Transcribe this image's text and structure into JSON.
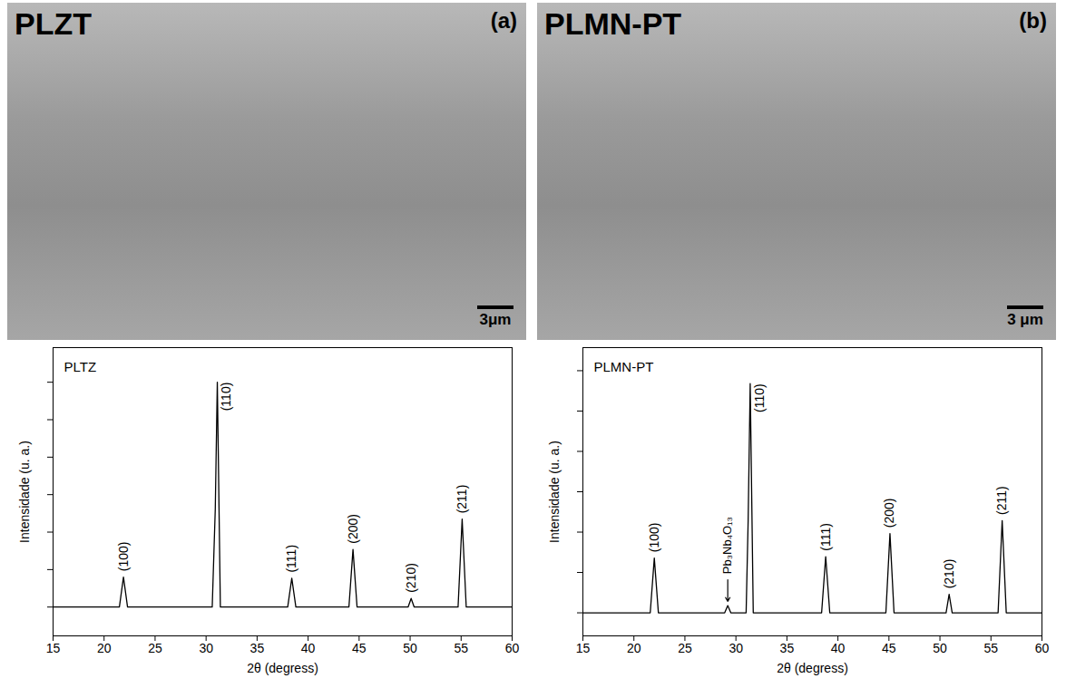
{
  "images": [
    {
      "title": "PLZT",
      "label": "(a)",
      "scale_bar": "3μm"
    },
    {
      "title": "PLMN-PT",
      "label": "(b)",
      "scale_bar": "3 μm"
    }
  ],
  "chart_data": [
    {
      "type": "line",
      "title": "PLTZ",
      "color": "#000000",
      "xlabel": "2θ (degress)",
      "ylabel": "Intensidade (u. a.)",
      "x": [
        15,
        21.5,
        21.9,
        22.3,
        30.6,
        30.9,
        31.1,
        31.4,
        38.0,
        38.4,
        38.8,
        44.0,
        44.4,
        44.8,
        49.8,
        50.1,
        50.4,
        54.7,
        55.1,
        55.5,
        60
      ],
      "values": [
        10,
        10,
        20.4,
        10,
        10,
        44,
        88,
        10,
        10,
        20,
        10,
        10,
        30,
        10,
        10,
        13,
        10,
        10,
        40.5,
        10,
        10
      ],
      "xlim": [
        15,
        60
      ],
      "xticks": [
        15,
        20,
        25,
        30,
        35,
        40,
        45,
        50,
        55,
        60
      ],
      "ylim": [
        0,
        100
      ],
      "yticks": [
        10,
        23,
        36,
        49,
        62,
        75,
        88
      ],
      "tick_labels": "x",
      "annotations": [
        {
          "text": "(100)",
          "x": 21.9
        },
        {
          "text": "(110)",
          "x": 31.1
        },
        {
          "text": "(111)",
          "x": 38.4
        },
        {
          "text": "(200)",
          "x": 44.4
        },
        {
          "text": "(210)",
          "x": 50.1
        },
        {
          "text": "(211)",
          "x": 55.1
        }
      ]
    },
    {
      "type": "line",
      "title": "PLMN-PT",
      "color": "#000000",
      "xlabel": "2θ (degress)",
      "ylabel": "Intensidade (u. a.)",
      "x": [
        15,
        21.6,
        22.0,
        22.4,
        28.9,
        29.2,
        29.5,
        31.0,
        31.2,
        31.4,
        31.7,
        38.4,
        38.8,
        39.2,
        44.7,
        45.1,
        45.5,
        50.6,
        50.9,
        51.2,
        55.7,
        56.1,
        56.5,
        60
      ],
      "values": [
        8,
        8,
        27,
        8,
        8,
        10.5,
        8,
        8,
        40,
        87.5,
        8,
        8,
        27.5,
        8,
        8,
        35.5,
        8,
        8,
        14.4,
        8,
        8,
        40,
        8,
        8
      ],
      "xlim": [
        15,
        60
      ],
      "xticks": [
        15,
        20,
        25,
        30,
        35,
        40,
        45,
        50,
        55,
        60
      ],
      "ylim": [
        0,
        100
      ],
      "yticks": [
        8,
        22,
        36,
        50,
        64,
        78,
        92
      ],
      "tick_labels": "x",
      "annotations": [
        {
          "text": "(100)",
          "x": 22.0
        },
        {
          "text": "Pb₃Nb₄O₁₃",
          "x": 29.2
        },
        {
          "text": "(110)",
          "x": 31.4
        },
        {
          "text": "(111)",
          "x": 38.8
        },
        {
          "text": "(200)",
          "x": 45.1
        },
        {
          "text": "(210)",
          "x": 50.9
        },
        {
          "text": "(211)",
          "x": 56.1
        }
      ]
    }
  ]
}
